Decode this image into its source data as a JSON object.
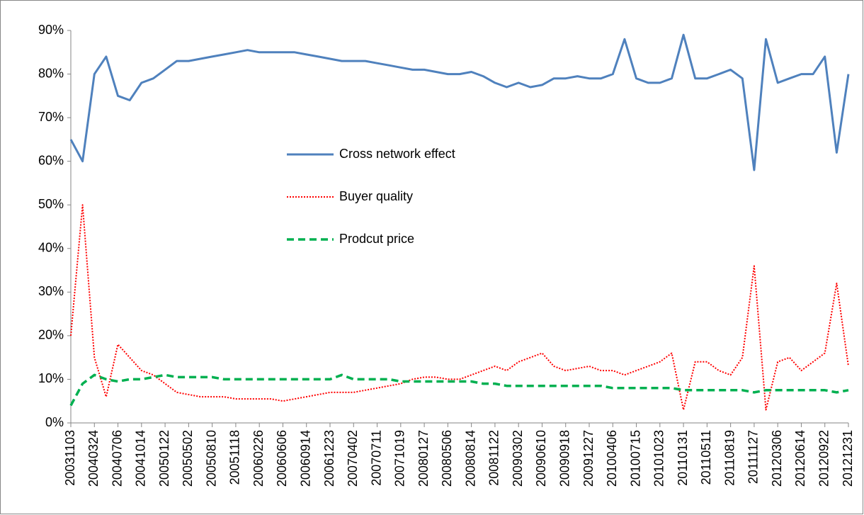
{
  "chart_data": {
    "type": "line",
    "categories": [
      "20031103",
      null,
      "20040324",
      null,
      "20040706",
      null,
      "20041014",
      null,
      "20050122",
      null,
      "20050502",
      null,
      "20050810",
      null,
      "20051118",
      null,
      "20060226",
      null,
      "20060606",
      null,
      "20060914",
      null,
      "20061223",
      null,
      "20070402",
      null,
      "20070711",
      null,
      "20071019",
      null,
      "20080127",
      null,
      "20080506",
      null,
      "20080814",
      null,
      "20081122",
      null,
      "20090302",
      null,
      "20090610",
      null,
      "20090918",
      null,
      "20091227",
      null,
      "20100406",
      null,
      "20100715",
      null,
      "20101023",
      null,
      "20110131",
      null,
      "20110511",
      null,
      "20110819",
      null,
      "20111127",
      null,
      "20120306",
      null,
      "20120614",
      null,
      "20120922",
      null,
      "20121231"
    ],
    "series": [
      {
        "name": "Cross network effect",
        "color": "#4f81bd",
        "style": "solid",
        "values": [
          65,
          60,
          80,
          84,
          75,
          74,
          78,
          79,
          81,
          83,
          83,
          83.5,
          84,
          84.5,
          85,
          85.5,
          85,
          85,
          85,
          85,
          84.5,
          84,
          83.5,
          83,
          83,
          83,
          82.5,
          82,
          81.5,
          81,
          81,
          80.5,
          80,
          80,
          80.5,
          79.5,
          78,
          77,
          78,
          77,
          77.5,
          79,
          79,
          79.5,
          79,
          79,
          80,
          88,
          79,
          78,
          78,
          79,
          89,
          79,
          79,
          80,
          81,
          79,
          58,
          88,
          78,
          79,
          80,
          80,
          84,
          62,
          80
        ]
      },
      {
        "name": "Buyer quality",
        "color": "#ff0000",
        "style": "dotted",
        "values": [
          20,
          50,
          15,
          6,
          18,
          15,
          12,
          11,
          9,
          7,
          6.5,
          6,
          6,
          6,
          5.5,
          5.5,
          5.5,
          5.5,
          5,
          5.5,
          6,
          6.5,
          7,
          7,
          7,
          7.5,
          8,
          8.5,
          9,
          10,
          10.5,
          10.5,
          10,
          10,
          11,
          12,
          13,
          12,
          14,
          15,
          16,
          13,
          12,
          12.5,
          13,
          12,
          12,
          11,
          12,
          13,
          14,
          16,
          3,
          14,
          14,
          12,
          11,
          15,
          36,
          3,
          14,
          15,
          12,
          14,
          16,
          32,
          13
        ]
      },
      {
        "name": "Prodcut price",
        "color": "#00b050",
        "style": "dashed",
        "values": [
          4,
          9,
          11,
          10,
          9.5,
          10,
          10,
          10.5,
          11,
          10.5,
          10.5,
          10.5,
          10.5,
          10,
          10,
          10,
          10,
          10,
          10,
          10,
          10,
          10,
          10,
          11,
          10,
          10,
          10,
          10,
          9.5,
          9.5,
          9.5,
          9.5,
          9.5,
          9.5,
          9.5,
          9,
          9,
          8.5,
          8.5,
          8.5,
          8.5,
          8.5,
          8.5,
          8.5,
          8.5,
          8.5,
          8,
          8,
          8,
          8,
          8,
          8,
          7.5,
          7.5,
          7.5,
          7.5,
          7.5,
          7.5,
          7,
          7.5,
          7.5,
          7.5,
          7.5,
          7.5,
          7.5,
          7,
          7.5
        ]
      }
    ],
    "ylim": [
      0,
      90
    ],
    "yticks": [
      {
        "value": 0,
        "label": "0%"
      },
      {
        "value": 10,
        "label": "10%"
      },
      {
        "value": 20,
        "label": "20%"
      },
      {
        "value": 30,
        "label": "30%"
      },
      {
        "value": 40,
        "label": "40%"
      },
      {
        "value": 50,
        "label": "50%"
      },
      {
        "value": 60,
        "label": "60%"
      },
      {
        "value": 70,
        "label": "70%"
      },
      {
        "value": 80,
        "label": "80%"
      },
      {
        "value": 90,
        "label": "90%"
      }
    ],
    "grid": false,
    "legend": "center"
  }
}
